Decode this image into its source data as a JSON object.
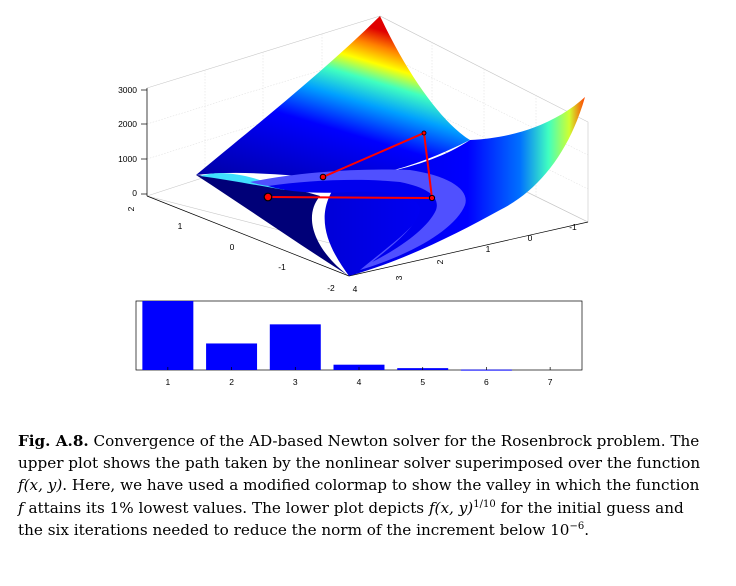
{
  "upper_plot": {
    "z_ticks": [
      "3000",
      "2000",
      "1000",
      "0"
    ],
    "y_ticks": [
      "2",
      "1",
      "0",
      "-1",
      "-2"
    ],
    "x_ticks": [
      "4",
      "3",
      "2",
      "1",
      "0",
      "-1"
    ]
  },
  "chart_data": {
    "type": "bar",
    "categories": [
      "1",
      "2",
      "3",
      "4",
      "5",
      "6",
      "7"
    ],
    "values": [
      2.6,
      1.0,
      1.72,
      0.2,
      0.07,
      0.015,
      0.0
    ],
    "ylim": [
      0,
      2.6
    ],
    "bar_color": "#0000ff",
    "grid": false,
    "title": "",
    "xlabel": "",
    "ylabel": ""
  },
  "caption": {
    "label": "Fig. A.8.",
    "t1": " Convergence of the AD-based Newton solver for the Rosenbrock problem. The upper plot shows the path taken by the nonlinear solver superimposed over the function ",
    "m1": "f(x, y)",
    "t2": ". Here, we have used a modified colormap to show the valley in which the function ",
    "m2": "f",
    "t3": " attains its 1% lowest values. The lower plot depicts ",
    "m3": "f(x, y)",
    "exp1": "1/10",
    "t4": " for the initial guess and the six iterations needed to reduce the norm of the increment below 10",
    "exp2": "−6",
    "t5": "."
  }
}
